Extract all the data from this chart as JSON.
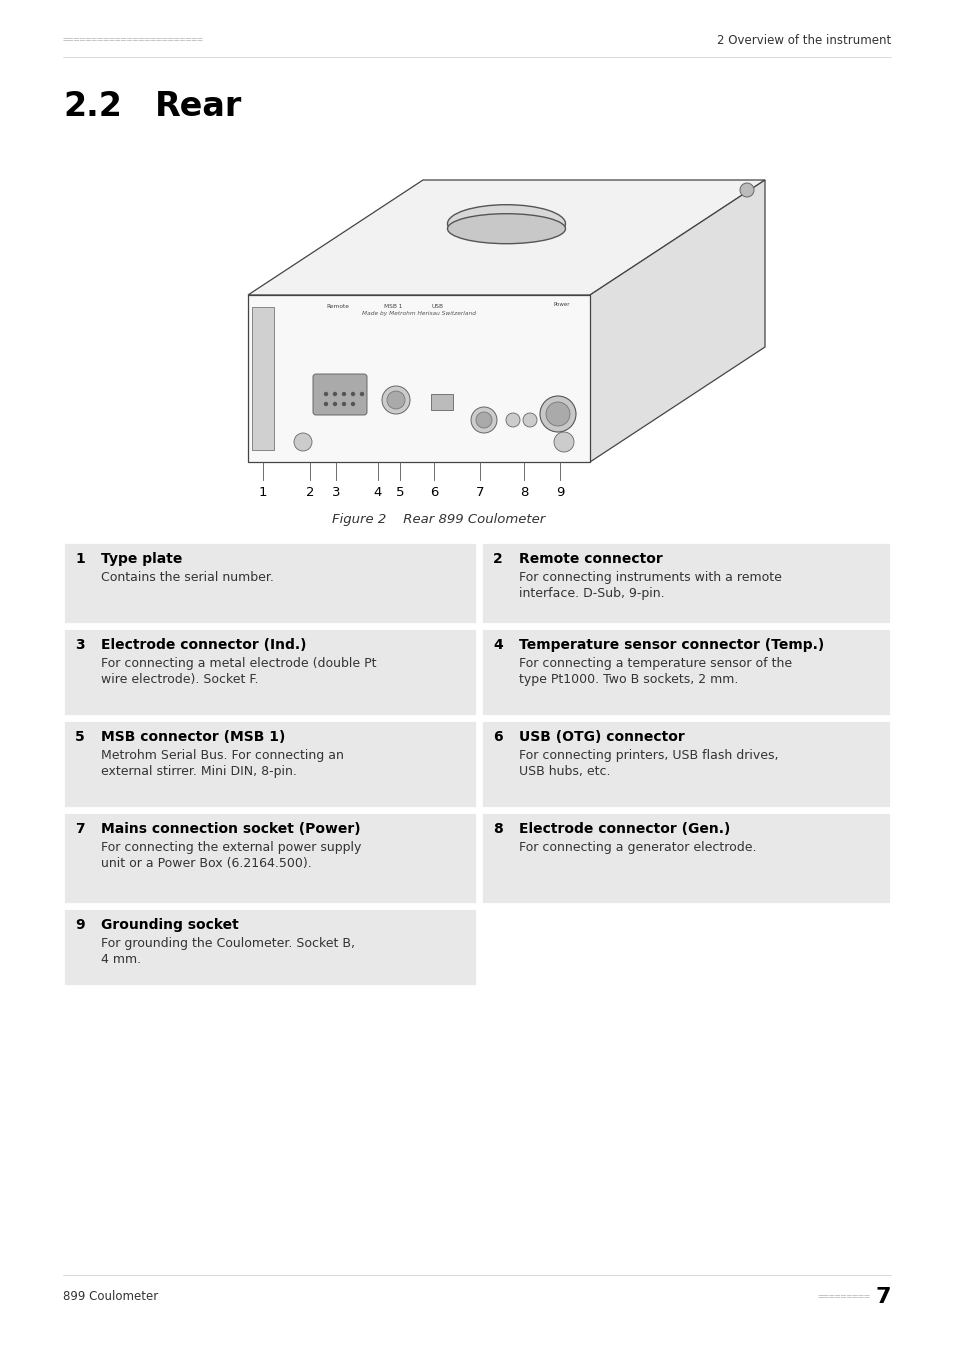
{
  "page_bg": "#ffffff",
  "header_left_text": "========================",
  "header_right_text": "2 Overview of the instrument",
  "section_number": "2.2",
  "section_title": "Rear",
  "figure_caption": "Figure 2    Rear 899 Coulometer",
  "footer_left": "899 Coulometer",
  "footer_right_dots": "=========",
  "footer_page": "7",
  "table_bg": "#e8e8e8",
  "items": [
    {
      "num": "1",
      "title": "Type plate",
      "desc": "Contains the serial number.",
      "col": 0,
      "row": 0
    },
    {
      "num": "2",
      "title": "Remote connector",
      "desc": "For connecting instruments with a remote\ninterface. D-Sub, 9-pin.",
      "col": 1,
      "row": 0
    },
    {
      "num": "3",
      "title": "Electrode connector (Ind.)",
      "desc": "For connecting a metal electrode (double Pt\nwire electrode). Socket F.",
      "col": 0,
      "row": 1
    },
    {
      "num": "4",
      "title": "Temperature sensor connector (Temp.)",
      "desc": "For connecting a temperature sensor of the\ntype Pt1000. Two B sockets, 2 mm.",
      "col": 1,
      "row": 1
    },
    {
      "num": "5",
      "title": "MSB connector (MSB 1)",
      "desc": "Metrohm Serial Bus. For connecting an\nexternal stirrer. Mini DIN, 8-pin.",
      "col": 0,
      "row": 2
    },
    {
      "num": "6",
      "title": "USB (OTG) connector",
      "desc": "For connecting printers, USB flash drives,\nUSB hubs, etc.",
      "col": 1,
      "row": 2
    },
    {
      "num": "7",
      "title": "Mains connection socket (Power)",
      "desc": "For connecting the external power supply\nunit or a Power Box (6.2164.500).",
      "col": 0,
      "row": 3
    },
    {
      "num": "8",
      "title": "Electrode connector (Gen.)",
      "desc": "For connecting a generator electrode.",
      "col": 1,
      "row": 3
    },
    {
      "num": "9",
      "title": "Grounding socket",
      "desc": "For grounding the Coulometer. Socket B,\n4 mm.",
      "col": 0,
      "row": 4
    }
  ]
}
